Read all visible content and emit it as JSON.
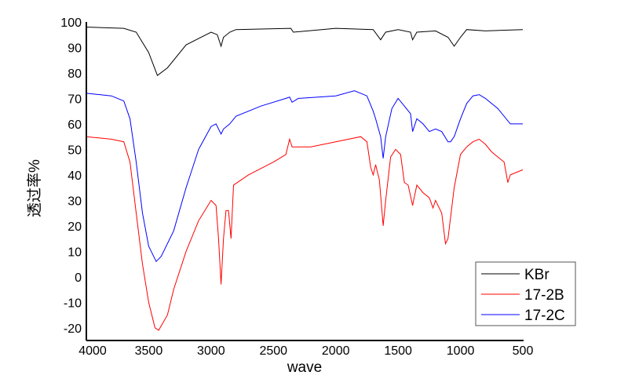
{
  "chart_data": {
    "type": "line",
    "title": "",
    "xlabel": "wave",
    "ylabel": "透过率%",
    "xlim": [
      4000,
      500
    ],
    "ylim": [
      -25,
      100
    ],
    "x_reversed": true,
    "xticks": [
      4000,
      3500,
      3000,
      2500,
      2000,
      1500,
      1000,
      500
    ],
    "yticks": [
      -20,
      -10,
      0,
      10,
      20,
      30,
      40,
      50,
      60,
      70,
      80,
      90,
      100
    ],
    "grid": false,
    "legend_position": "bottom-right",
    "series": [
      {
        "name": "KBr",
        "color": "#000000",
        "x": [
          4000,
          3700,
          3600,
          3500,
          3430,
          3350,
          3200,
          3000,
          2950,
          2920,
          2900,
          2850,
          2800,
          2360,
          2340,
          2000,
          1700,
          1640,
          1600,
          1500,
          1400,
          1384,
          1350,
          1200,
          1100,
          1050,
          1000,
          950,
          800,
          500
        ],
        "y": [
          98,
          97.5,
          96,
          88,
          79,
          82,
          91,
          96,
          95,
          90.5,
          94,
          96,
          97,
          97.5,
          96,
          97.5,
          97,
          93,
          96,
          97,
          96,
          93,
          96,
          96.5,
          94,
          90.5,
          94,
          97,
          96.5,
          97
        ]
      },
      {
        "name": "17-2B",
        "color": "#ff0000",
        "x": [
          4000,
          3800,
          3700,
          3650,
          3600,
          3550,
          3500,
          3450,
          3420,
          3350,
          3300,
          3200,
          3100,
          3000,
          2960,
          2940,
          2920,
          2900,
          2880,
          2860,
          2840,
          2820,
          2700,
          2500,
          2400,
          2370,
          2350,
          2300,
          2200,
          2000,
          1800,
          1750,
          1720,
          1700,
          1680,
          1650,
          1620,
          1600,
          1560,
          1520,
          1480,
          1450,
          1420,
          1384,
          1350,
          1300,
          1250,
          1220,
          1200,
          1150,
          1120,
          1100,
          1050,
          1000,
          950,
          900,
          850,
          800,
          750,
          700,
          650,
          620,
          600,
          500
        ],
        "y": [
          55,
          54,
          53,
          45,
          25,
          5,
          -10,
          -20,
          -21,
          -15,
          -5,
          10,
          22,
          30,
          28,
          15,
          -3,
          15,
          26,
          26,
          15,
          36,
          40,
          45,
          48,
          54,
          51,
          51,
          51,
          53,
          55,
          53,
          43,
          40,
          44,
          38,
          20,
          30,
          47,
          50,
          48,
          37,
          36,
          28,
          36,
          33,
          31,
          27,
          30,
          25,
          13,
          15,
          35,
          48,
          51,
          53,
          54,
          52,
          49,
          47,
          45,
          37,
          40,
          42
        ]
      },
      {
        "name": "17-2C",
        "color": "#0000ff",
        "x": [
          4000,
          3800,
          3700,
          3650,
          3600,
          3550,
          3500,
          3440,
          3400,
          3300,
          3200,
          3100,
          3000,
          2960,
          2920,
          2900,
          2850,
          2800,
          2600,
          2400,
          2370,
          2350,
          2300,
          2000,
          1850,
          1750,
          1700,
          1680,
          1640,
          1620,
          1600,
          1550,
          1500,
          1450,
          1400,
          1384,
          1350,
          1300,
          1250,
          1200,
          1150,
          1100,
          1080,
          1050,
          1000,
          950,
          900,
          850,
          800,
          700,
          600,
          500
        ],
        "y": [
          72,
          71,
          69,
          62,
          45,
          25,
          12,
          6,
          8,
          18,
          35,
          50,
          59,
          60,
          56,
          58,
          60,
          63,
          67,
          70,
          70.5,
          68.5,
          70,
          71,
          73,
          71,
          65,
          62,
          55,
          46.5,
          55,
          66,
          70,
          67,
          64,
          57,
          62,
          60,
          57,
          58,
          57,
          53,
          53,
          55,
          62,
          68,
          71,
          71.5,
          70,
          66,
          60,
          60
        ]
      }
    ]
  }
}
